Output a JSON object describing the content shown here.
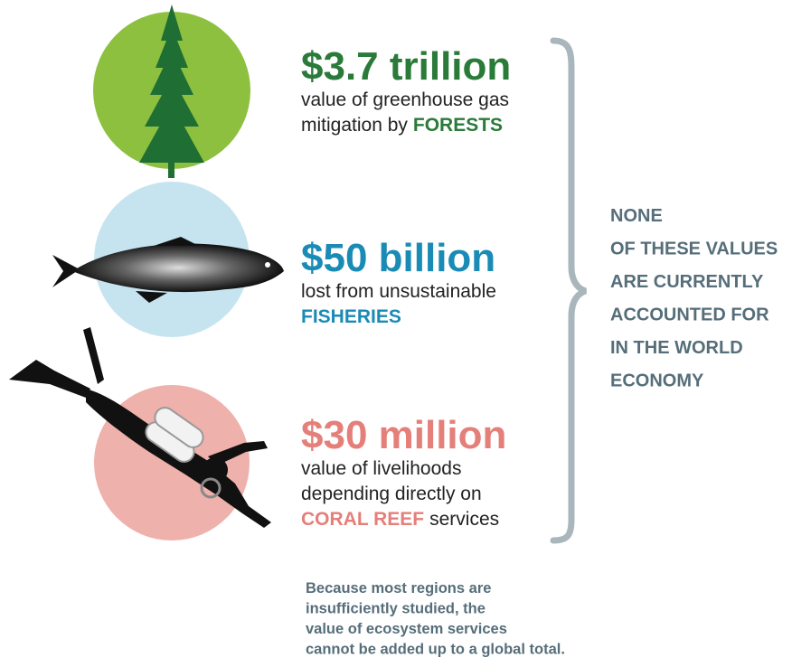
{
  "items": [
    {
      "headline": "$3.7 trillion",
      "lines": [
        "value of greenhouse gas"
      ],
      "last_line": {
        "before": "mitigation by",
        "highlight": "FORESTS"
      }
    },
    {
      "headline": "$50 billion",
      "lines": [
        "lost from unsustainable"
      ],
      "last_line": {
        "highlight": "FISHERIES"
      }
    },
    {
      "headline": "$30 million",
      "lines": [
        "value of livelihoods",
        "depending directly on"
      ],
      "last_line": {
        "highlight": "CORAL REEF",
        "after": "services"
      }
    }
  ],
  "side_note": [
    "NONE",
    "OF THESE VALUES",
    "ARE CURRENTLY",
    "ACCOUNTED FOR",
    "IN THE WORLD",
    "ECONOMY"
  ],
  "footnote": [
    "Because most regions are",
    "insufficiently studied, the",
    "value of ecosystem services",
    "cannot be added up to a global total."
  ]
}
